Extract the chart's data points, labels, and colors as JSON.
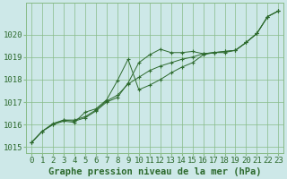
{
  "title": "Graphe pression niveau de la mer (hPa)",
  "line1": [
    1015.2,
    1015.7,
    1016.0,
    1016.2,
    1016.15,
    1016.3,
    1016.6,
    1017.0,
    1017.2,
    1017.85,
    1018.75,
    1019.1,
    1019.35,
    1019.2,
    1019.2,
    1019.25,
    1019.15,
    1019.2,
    1019.2,
    1019.3,
    1019.65,
    1020.05,
    1020.8,
    1021.05
  ],
  "line2": [
    1015.2,
    1015.7,
    1016.05,
    1016.2,
    1016.2,
    1016.35,
    1016.65,
    1017.05,
    1017.3,
    1017.8,
    1018.1,
    1018.4,
    1018.6,
    1018.75,
    1018.9,
    1019.0,
    1019.15,
    1019.2,
    1019.25,
    1019.3,
    1019.65,
    1020.05,
    1020.8,
    1021.05
  ],
  "line3": [
    1015.2,
    1015.7,
    1016.0,
    1016.15,
    1016.1,
    1016.55,
    1016.7,
    1017.1,
    1017.95,
    1018.9,
    1017.55,
    1017.75,
    1018.0,
    1018.3,
    1018.55,
    1018.75,
    1019.1,
    1019.2,
    1019.25,
    1019.3,
    1019.65,
    1020.05,
    1020.8,
    1021.05
  ],
  "hours": [
    0,
    1,
    2,
    3,
    4,
    5,
    6,
    7,
    8,
    9,
    10,
    11,
    12,
    13,
    14,
    15,
    16,
    17,
    18,
    19,
    20,
    21,
    22,
    23
  ],
  "ylim": [
    1014.75,
    1021.4
  ],
  "yticks": [
    1015,
    1016,
    1017,
    1018,
    1019,
    1020
  ],
  "line_color": "#2d6a2d",
  "bg_color": "#cde8e8",
  "grid_color": "#88bb88",
  "title_color": "#2d6a2d",
  "title_fontsize": 7.5,
  "tick_fontsize": 6.5
}
